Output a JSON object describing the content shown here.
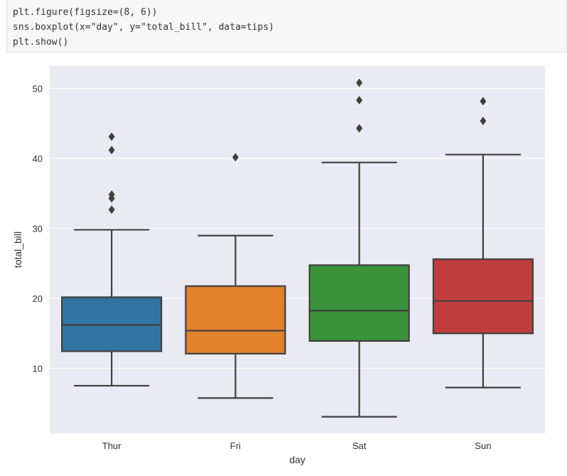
{
  "code_cell": {
    "lines": [
      "plt.figure(figsize=(8, 6))",
      "sns.boxplot(x=\"day\", y=\"total_bill\", data=tips)",
      "plt.show()"
    ]
  },
  "chart_data": {
    "type": "box",
    "xlabel": "day",
    "ylabel": "total_bill",
    "ylim": [
      0.7,
      53.2
    ],
    "yticks": [
      10,
      20,
      30,
      40,
      50
    ],
    "grid": true,
    "background": "#eaeaf2",
    "categories": [
      "Thur",
      "Fri",
      "Sat",
      "Sun"
    ],
    "boxes": [
      {
        "name": "Thur",
        "color": "#3274a1",
        "whislo": 7.51,
        "q1": 12.44,
        "med": 16.2,
        "q3": 20.16,
        "whishi": 29.8,
        "fliers": [
          32.68,
          34.3,
          34.83,
          41.19,
          43.11
        ]
      },
      {
        "name": "Fri",
        "color": "#e1812c",
        "whislo": 5.75,
        "q1": 12.09,
        "med": 15.38,
        "q3": 21.75,
        "whishi": 28.97,
        "fliers": [
          40.17
        ]
      },
      {
        "name": "Sat",
        "color": "#3a923a",
        "whislo": 3.07,
        "q1": 13.91,
        "med": 18.24,
        "q3": 24.74,
        "whishi": 39.42,
        "fliers": [
          44.3,
          48.33,
          50.81
        ]
      },
      {
        "name": "Sun",
        "color": "#c03d3e",
        "whislo": 7.25,
        "q1": 14.99,
        "med": 19.63,
        "q3": 25.6,
        "whishi": 40.55,
        "fliers": [
          45.35,
          48.17
        ]
      }
    ]
  }
}
